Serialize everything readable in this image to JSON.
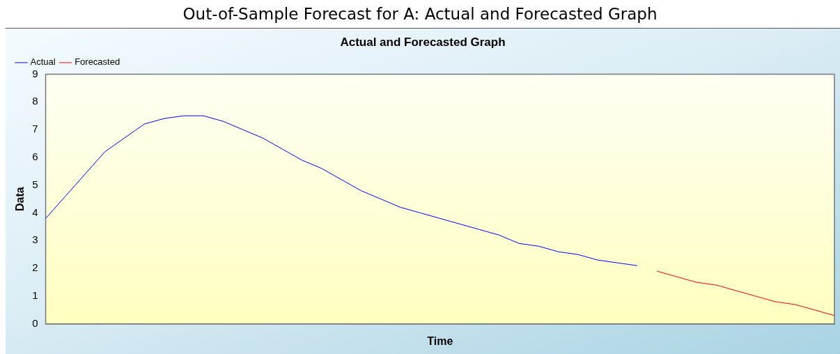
{
  "chart_data": {
    "type": "line",
    "title": "Out-of-Sample Forecast for A: Actual and Forecasted Graph",
    "subtitle": "Actual and Forecasted Graph",
    "xlabel": "Time",
    "ylabel": "Data",
    "categories": [
      null,
      null,
      null,
      null,
      null,
      null,
      null,
      null,
      null,
      null,
      null,
      null,
      null,
      null,
      null,
      null,
      null,
      null,
      null,
      null,
      null,
      null,
      null,
      null,
      null,
      null,
      null,
      null,
      null,
      null,
      null,
      null,
      null,
      null,
      null,
      null,
      null,
      null,
      null,
      null,
      null
    ],
    "series": [
      {
        "name": "Actual",
        "color": "#0000ff",
        "values": [
          3.8,
          4.6,
          5.4,
          6.2,
          6.7,
          7.2,
          7.4,
          7.5,
          7.5,
          7.3,
          7.0,
          6.7,
          6.3,
          5.9,
          5.6,
          5.2,
          4.8,
          4.5,
          4.2,
          4.0,
          3.8,
          3.6,
          3.4,
          3.2,
          2.9,
          2.8,
          2.6,
          2.5,
          2.3,
          2.2,
          2.1,
          null,
          null,
          null,
          null,
          null,
          null,
          null,
          null,
          null,
          null
        ]
      },
      {
        "name": "Forecasted",
        "color": "#ff0000",
        "values": [
          null,
          null,
          null,
          null,
          null,
          null,
          null,
          null,
          null,
          null,
          null,
          null,
          null,
          null,
          null,
          null,
          null,
          null,
          null,
          null,
          null,
          null,
          null,
          null,
          null,
          null,
          null,
          null,
          null,
          null,
          null,
          1.9,
          1.7,
          1.5,
          1.4,
          1.2,
          1.0,
          0.8,
          0.7,
          0.5,
          0.3
        ]
      }
    ],
    "ylim": [
      0,
      9
    ],
    "yticks": [
      0,
      1,
      2,
      3,
      4,
      5,
      6,
      7,
      8,
      9
    ],
    "tick_labels": "y",
    "legend": "top left",
    "grid": false,
    "marker": "none",
    "line_style": "solid"
  }
}
